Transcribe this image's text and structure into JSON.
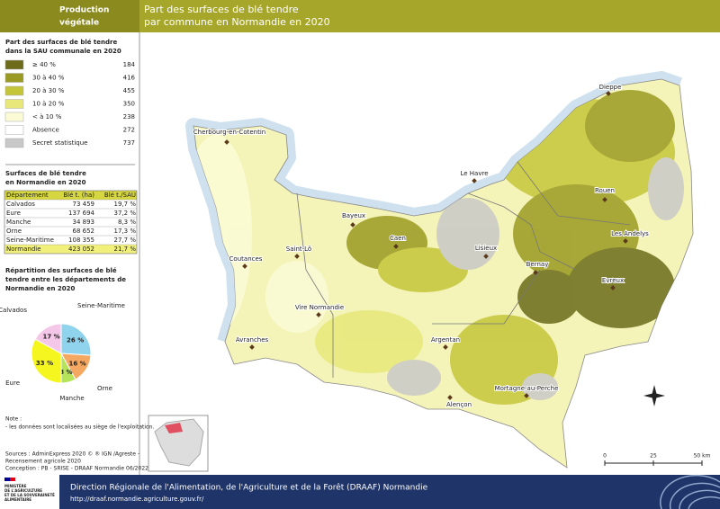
{
  "header": {
    "section": [
      "Production",
      "végétale"
    ],
    "title": [
      "Part des surfaces de blé tendre",
      "par commune en Normandie en 2020"
    ]
  },
  "legend": {
    "title": [
      "Part des surfaces de blé tendre",
      "dans la SAU communale en 2020"
    ],
    "items": [
      {
        "label": "≥ 40 %",
        "count": 184,
        "color": "#6b6b1a"
      },
      {
        "label": "30 à 40 %",
        "count": 416,
        "color": "#9a9a22"
      },
      {
        "label": "20 à 30 %",
        "count": 455,
        "color": "#c5c53a"
      },
      {
        "label": "10 à 20 %",
        "count": 350,
        "color": "#e8e87a"
      },
      {
        "label": "< à 10 %",
        "count": 238,
        "color": "#fbfbd6"
      },
      {
        "label": "Absence",
        "count": 272,
        "color": "#ffffff"
      },
      {
        "label": "Secret statistique",
        "count": 737,
        "color": "#c8c8c8"
      }
    ]
  },
  "table": {
    "title": [
      "Surfaces de blé tendre",
      "en Normandie en 2020"
    ],
    "header": [
      "Département",
      "Blé t. (ha)",
      "Blé t./SAU"
    ],
    "rows": [
      [
        "Calvados",
        "73 459",
        "19,7 %"
      ],
      [
        "Eure",
        "137 694",
        "37,2 %"
      ],
      [
        "Manche",
        "34 893",
        "8,3 %"
      ],
      [
        "Orne",
        "68 652",
        "17,3 %"
      ],
      [
        "Seine-Maritime",
        "108 355",
        "27,7 %"
      ],
      [
        "Normandie",
        "423 052",
        "21,7 %"
      ]
    ]
  },
  "pie": {
    "type": "pie",
    "title": [
      "Répartition des surfaces de blé",
      "tendre entre les départements de",
      "Normandie en 2020"
    ],
    "categories": [
      "Seine-Maritime",
      "Orne",
      "Manche",
      "Eure",
      "Calvados"
    ],
    "values": [
      26,
      16,
      8,
      33,
      17
    ],
    "value_labels": [
      "26 %",
      "16 %",
      "8 %",
      "33 %",
      "17 %"
    ],
    "colors": [
      "#8fd3ec",
      "#f5a862",
      "#b5e35a",
      "#f5f520",
      "#f4c6e8"
    ]
  },
  "note": {
    "title": "Note :",
    "text": "- les données sont localisées au siège de l'exploitation."
  },
  "sources": [
    "Sources      : AdminExpress 2020 © ® IGN /Agreste -",
    "Recensement agricole 2020",
    "Conception : PB - SRISE - DRAAF Normandie 06/2022"
  ],
  "map": {
    "cities": [
      "Cherbourg-en-Cotentin",
      "Dieppe",
      "Le Havre",
      "Rouen",
      "Bayeux",
      "Caen",
      "Lisieux",
      "Les Andelys",
      "Saint-Lô",
      "Coutances",
      "Bernay",
      "Evreux",
      "Vire Normandie",
      "Argentan",
      "Avranches",
      "Mortagne-au-Perche",
      "Alençon"
    ],
    "scale": [
      0,
      25,
      {
        "value": 50,
        "label": "50 km"
      }
    ]
  },
  "footer": {
    "ministry": [
      "MINISTÈRE",
      "DE L'AGRICULTURE",
      "ET DE LA SOUVERAINETÉ",
      "ALIMENTAIRE"
    ],
    "title": "Direction Régionale de l'Alimentation, de l'Agriculture et de la Forêt (DRAAF) Normandie",
    "url": "http://draaf.normandie.agriculture.gouv.fr/"
  }
}
